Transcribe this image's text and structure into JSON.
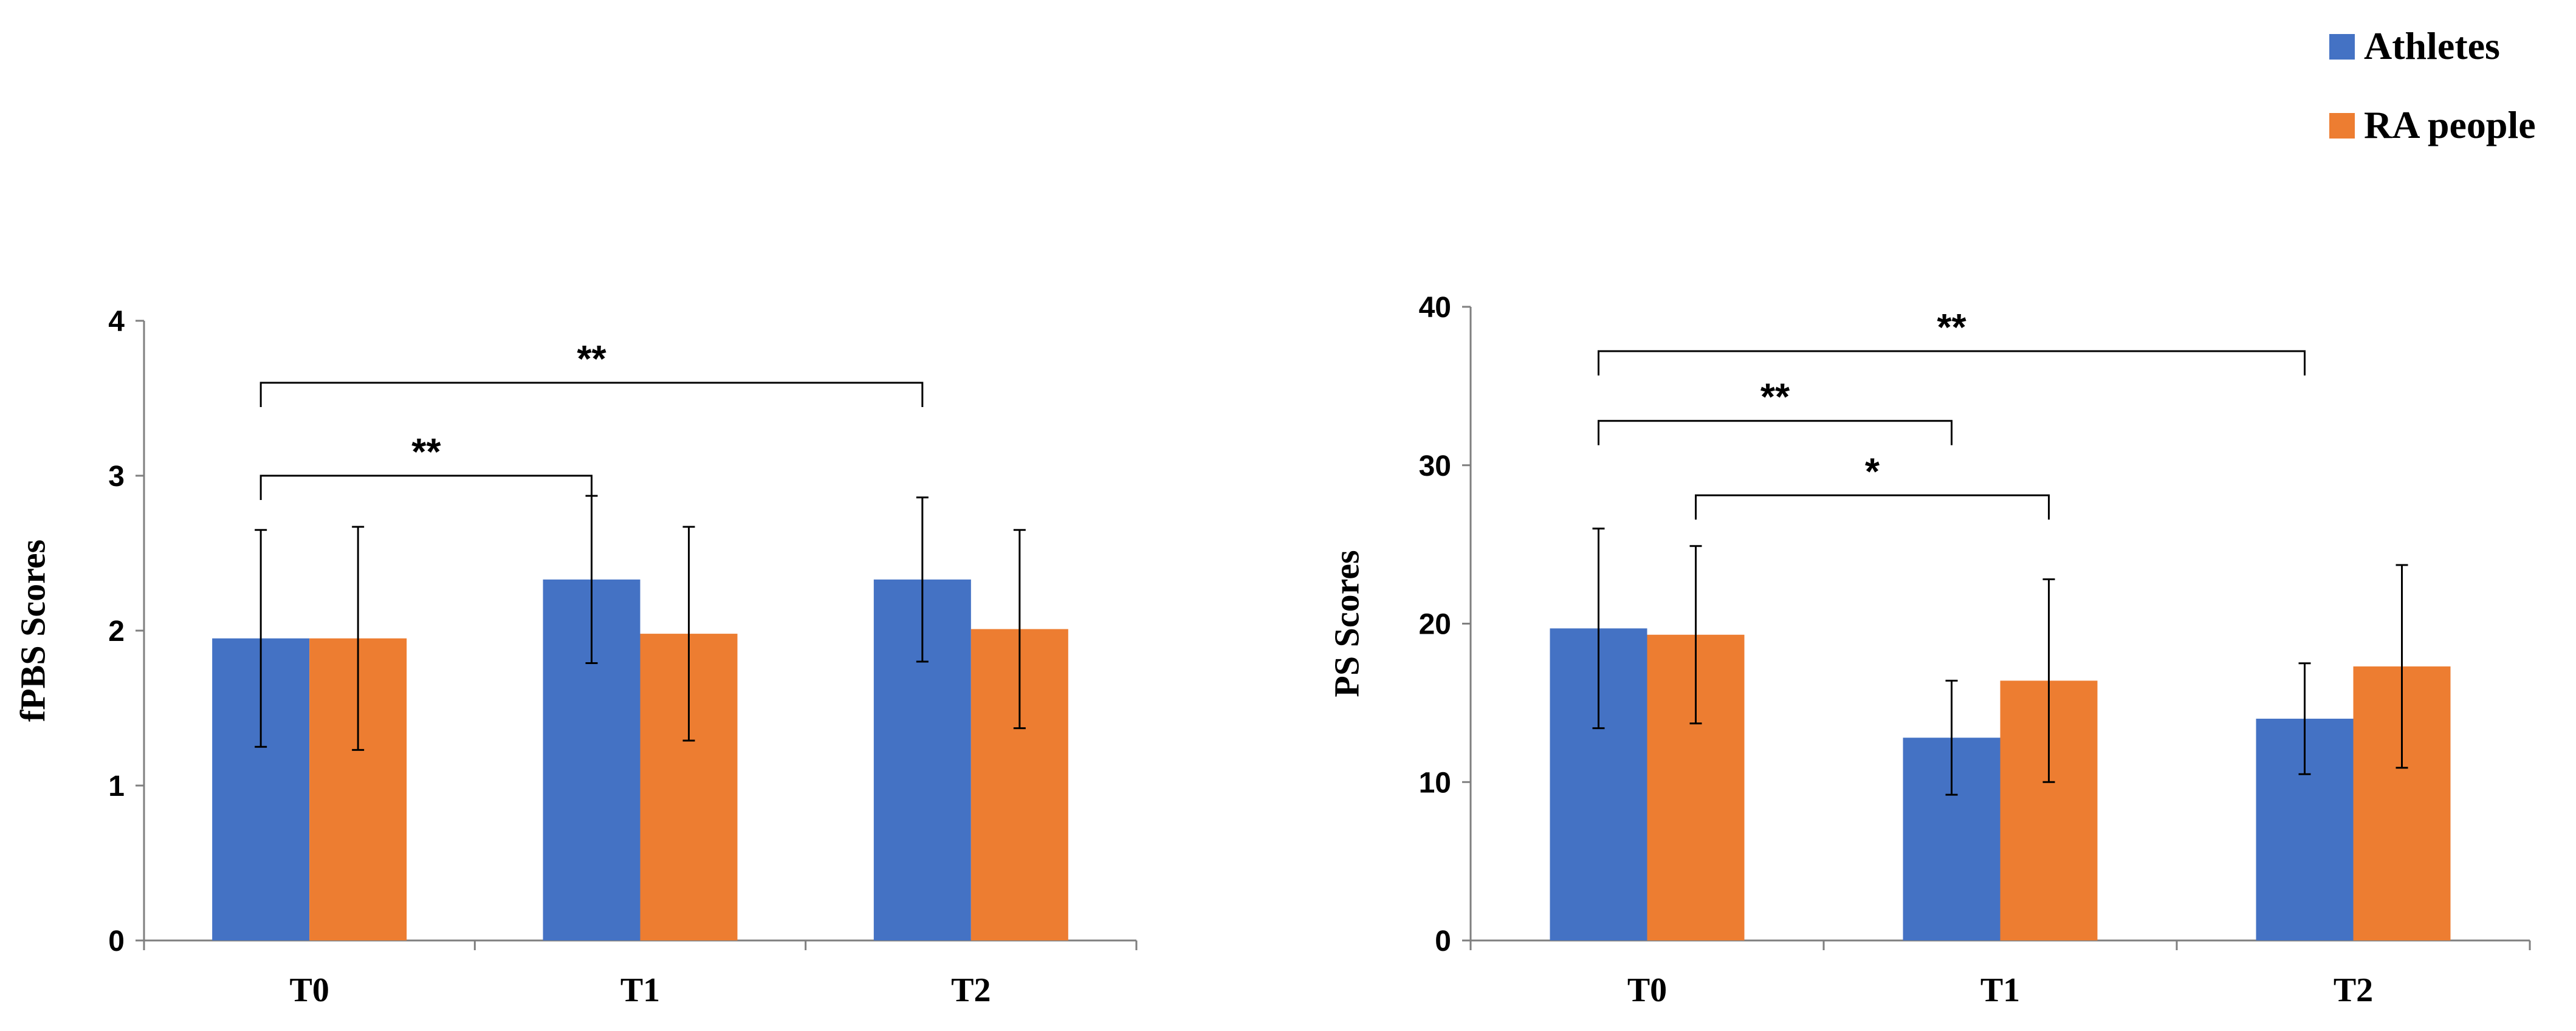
{
  "legend": {
    "items": [
      {
        "label": "Athletes",
        "color": "#4472c4"
      },
      {
        "label": "RA people",
        "color": "#ed7d31"
      }
    ]
  },
  "chart_data": [
    {
      "type": "bar",
      "title": "",
      "xlabel": "",
      "ylabel": "fPBS Scores",
      "categories": [
        "T0",
        "T1",
        "T2"
      ],
      "ylim": [
        0,
        4
      ],
      "yticks": [
        0,
        1,
        2,
        3,
        4
      ],
      "series": [
        {
          "name": "Athletes",
          "color": "#4472c4",
          "values": [
            1.95,
            2.33,
            2.33
          ],
          "errors": [
            0.7,
            0.54,
            0.53
          ]
        },
        {
          "name": "RA people",
          "color": "#ed7d31",
          "values": [
            1.95,
            1.98,
            2.01
          ],
          "errors": [
            0.72,
            0.69,
            0.64
          ]
        }
      ],
      "significance": [
        {
          "from_category": 0,
          "from_series": 0,
          "to_category": 1,
          "to_series": 0,
          "label": "**",
          "level": 3.0
        },
        {
          "from_category": 0,
          "from_series": 0,
          "to_category": 2,
          "to_series": 0,
          "label": "**",
          "level": 3.6
        }
      ]
    },
    {
      "type": "bar",
      "title": "",
      "xlabel": "",
      "ylabel": "PS Scores",
      "categories": [
        "T0",
        "T1",
        "T2"
      ],
      "ylim": [
        0,
        40
      ],
      "yticks": [
        0,
        10,
        20,
        30,
        40
      ],
      "series": [
        {
          "name": "Athletes",
          "color": "#4472c4",
          "values": [
            19.7,
            12.8,
            14.0
          ],
          "errors": [
            6.3,
            3.6,
            3.5
          ]
        },
        {
          "name": "RA people",
          "color": "#ed7d31",
          "values": [
            19.3,
            16.4,
            17.3
          ],
          "errors": [
            5.6,
            6.4,
            6.4
          ]
        }
      ],
      "significance": [
        {
          "from_category": 0,
          "from_series": 0,
          "to_category": 1,
          "to_series": 0,
          "label": "**",
          "level": 32.8
        },
        {
          "from_category": 0,
          "from_series": 0,
          "to_category": 2,
          "to_series": 0,
          "label": "**",
          "level": 37.2
        },
        {
          "from_category": 0,
          "from_series": 1,
          "to_category": 1,
          "to_series": 1,
          "label": "*",
          "level": 28.1
        }
      ]
    }
  ]
}
